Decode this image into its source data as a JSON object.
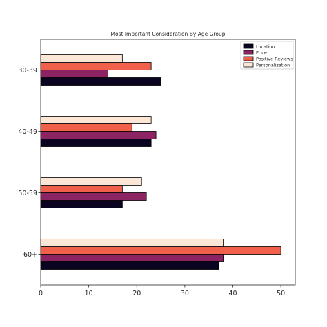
{
  "chart_data": {
    "type": "bar",
    "orientation": "horizontal",
    "title": "Most Important Consideration By Age Group",
    "xlabel": "",
    "ylabel": "",
    "categories": [
      "60+",
      "50-59",
      "40-49",
      "30-39"
    ],
    "xlim": [
      0,
      53
    ],
    "xticks": [
      0,
      10,
      20,
      30,
      40,
      50
    ],
    "grid": false,
    "legend_position": "top-right",
    "series": [
      {
        "name": "Location",
        "color": "#0b0420",
        "values": [
          37,
          17,
          23,
          25
        ]
      },
      {
        "name": "Price",
        "color": "#8c2362",
        "values": [
          38,
          22,
          24,
          14
        ]
      },
      {
        "name": "Positive Reviews",
        "color": "#f0604a",
        "values": [
          50,
          17,
          19,
          23
        ]
      },
      {
        "name": "Personalization",
        "color": "#fce6d6",
        "values": [
          38,
          21,
          23,
          17
        ]
      }
    ]
  }
}
